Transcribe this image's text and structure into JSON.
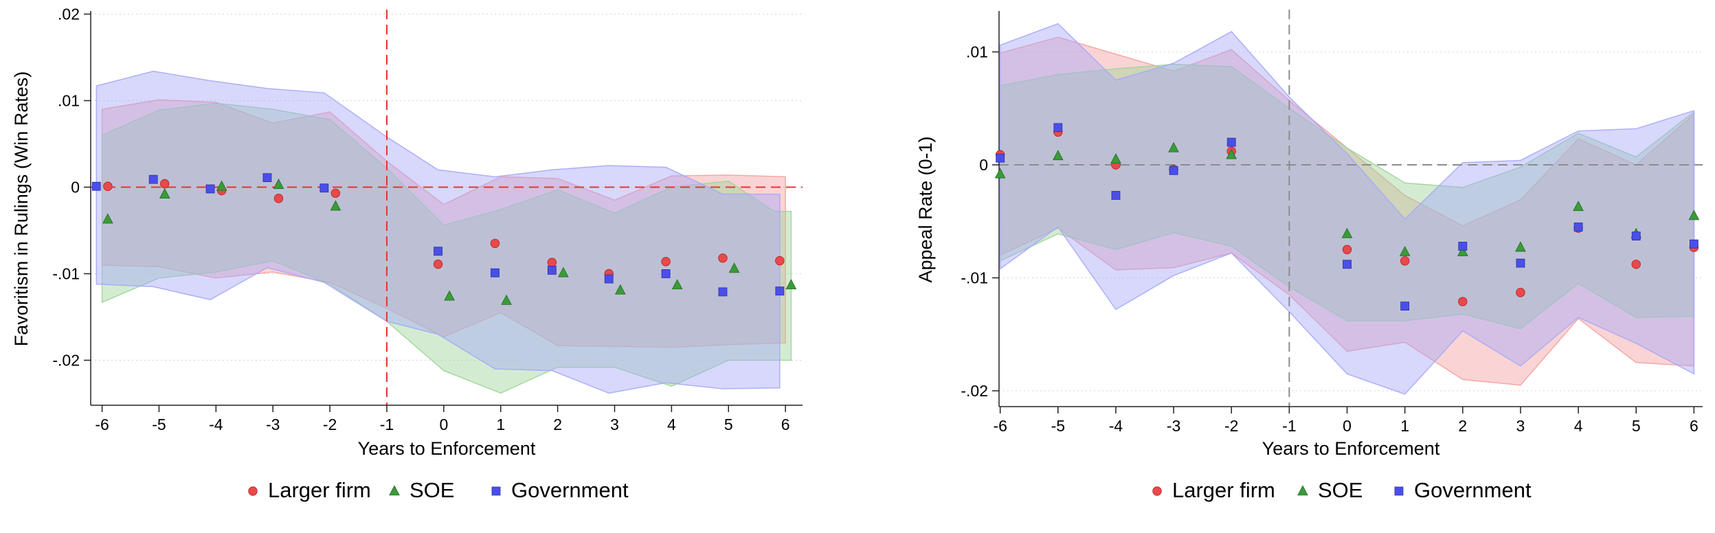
{
  "chart_data": [
    {
      "type": "scatter",
      "title": "",
      "xlabel": "Years to Enforcement",
      "ylabel": "Favoritism in Rulings (Win Rates)",
      "xlim": [
        -6.2,
        6.3
      ],
      "ylim": [
        -0.0252,
        0.0202
      ],
      "xticks": [
        -6,
        -5,
        -4,
        -3,
        -2,
        -1,
        0,
        1,
        2,
        3,
        4,
        5,
        6
      ],
      "xtick_labels": [
        "-6",
        "-5",
        "-4",
        "-3",
        "-2",
        "-1",
        "0",
        "1",
        "2",
        "3",
        "4",
        "5",
        "6"
      ],
      "yticks": [
        0.02,
        0.01,
        0,
        -0.01,
        -0.02
      ],
      "ytick_labels": [
        ".02",
        ".01",
        "0",
        "-.01",
        "-.02"
      ],
      "grid": "horizontal dotted",
      "reference_lines": {
        "vertical_x": -1,
        "horizontal_y": 0,
        "color": "#e8332f",
        "style": "dashed"
      },
      "legend": "bottom-center",
      "series": [
        {
          "name": "Larger firm",
          "marker": "circle",
          "color": "#e8494a",
          "band_color": "#f5a0a0",
          "x": [
            -5.9,
            -4.9,
            -3.9,
            -2.9,
            -1.9,
            -0.1,
            0.9,
            1.9,
            2.9,
            3.9,
            4.9,
            5.9
          ],
          "y": [
            0.0001,
            0.0004,
            -0.0004,
            -0.0013,
            -0.0007,
            -0.0089,
            -0.0065,
            -0.0087,
            -0.01,
            -0.0086,
            -0.0082,
            -0.0085
          ],
          "ci_x": [
            -6,
            -5,
            -4,
            -3,
            -2,
            -1,
            0,
            1,
            2,
            3,
            4,
            5,
            6
          ],
          "ci_lower": [
            -0.009,
            -0.0092,
            -0.0105,
            -0.0098,
            -0.011,
            -0.014,
            -0.0173,
            -0.0145,
            -0.0183,
            -0.0184,
            -0.0185,
            -0.0182,
            -0.018
          ],
          "ci_upper": [
            0.009,
            0.0101,
            0.0098,
            0.0074,
            0.0087,
            0.003,
            -0.002,
            0.0012,
            0.001,
            -0.0015,
            0.0013,
            0.0014,
            0.0012
          ]
        },
        {
          "name": "SOE",
          "marker": "triangle",
          "color": "#3a9b3a",
          "band_color": "#9ed49a",
          "x": [
            -5.9,
            -4.9,
            -3.9,
            -2.9,
            -1.9,
            0.1,
            1.1,
            2.1,
            3.1,
            4.1,
            5.1,
            6.1
          ],
          "y": [
            -0.0037,
            -0.0008,
            0.0001,
            0.0003,
            -0.0022,
            -0.0126,
            -0.0131,
            -0.0099,
            -0.0119,
            -0.0113,
            -0.0094,
            -0.0113
          ],
          "ci_x": [
            -6,
            -5,
            -4,
            -3,
            -2,
            -1,
            0,
            1,
            2,
            3,
            4,
            5,
            5.8,
            6.1
          ],
          "ci_lower": [
            -0.0133,
            -0.0105,
            -0.0098,
            -0.0085,
            -0.0112,
            -0.0155,
            -0.0212,
            -0.0238,
            -0.0208,
            -0.0208,
            -0.023,
            -0.02,
            -0.02,
            -0.02
          ],
          "ci_upper": [
            0.006,
            0.0089,
            0.0097,
            0.009,
            0.0078,
            0.0022,
            -0.0044,
            -0.0026,
            -0.0003,
            -0.003,
            0.0,
            0.0007,
            -0.0028,
            -0.0028
          ]
        },
        {
          "name": "Government",
          "marker": "square",
          "color": "#4a4fe8",
          "band_color": "#a6a8f8",
          "x": [
            -6.1,
            -5.1,
            -4.1,
            -3.1,
            -2.1,
            -0.1,
            0.9,
            1.9,
            2.9,
            3.9,
            4.9,
            5.9
          ],
          "y": [
            0.0001,
            0.0009,
            -0.0002,
            0.0011,
            -0.0001,
            -0.0074,
            -0.0099,
            -0.0096,
            -0.0106,
            -0.01,
            -0.0121,
            -0.012
          ],
          "ci_x": [
            -6.1,
            -5.1,
            -4.1,
            -3.1,
            -2.1,
            -1,
            -0.1,
            0.9,
            1.9,
            2.9,
            3.9,
            4.9,
            5.9
          ],
          "ci_lower": [
            -0.0112,
            -0.0115,
            -0.013,
            -0.0093,
            -0.011,
            -0.0155,
            -0.017,
            -0.021,
            -0.0212,
            -0.0238,
            -0.0226,
            -0.0233,
            -0.0232
          ],
          "ci_upper": [
            0.0117,
            0.0134,
            0.0123,
            0.0114,
            0.0109,
            0.0058,
            0.002,
            0.0012,
            0.002,
            0.0025,
            0.0023,
            -0.0008,
            -0.0008
          ]
        }
      ]
    },
    {
      "type": "scatter",
      "title": "",
      "xlabel": "Years to Enforcement",
      "ylabel": "Appeal Rate (0-1)",
      "xlim": [
        -6.02,
        6.15
      ],
      "ylim": [
        -0.0214,
        0.0135
      ],
      "xticks": [
        -6,
        -5,
        -4,
        -3,
        -2,
        -1,
        0,
        1,
        2,
        3,
        4,
        5,
        6
      ],
      "xtick_labels": [
        "-6",
        "-5",
        "-4",
        "-3",
        "-2",
        "-1",
        "0",
        "1",
        "2",
        "3",
        "4",
        "5",
        "6"
      ],
      "yticks": [
        0.01,
        0,
        -0.01,
        -0.02
      ],
      "ytick_labels": [
        ".01",
        "0",
        "-.01",
        "-.02"
      ],
      "grid": "horizontal dotted",
      "reference_lines": {
        "vertical_x": -1,
        "horizontal_y": 0,
        "color": "#8c8c8c",
        "style": "dashed"
      },
      "legend": "bottom-center",
      "series": [
        {
          "name": "Larger firm",
          "marker": "circle",
          "color": "#e8494a",
          "band_color": "#f5a0a0",
          "x": [
            -6,
            -5,
            -4,
            -3,
            -2,
            0,
            1,
            2,
            3,
            4,
            5,
            6
          ],
          "y": [
            0.0009,
            0.0029,
            0.0,
            -0.0004,
            0.0012,
            -0.0075,
            -0.0085,
            -0.0121,
            -0.0113,
            -0.0056,
            -0.0088,
            -0.0073
          ],
          "ci_x": [
            -6,
            -5,
            -4,
            -3,
            -2,
            -1,
            0,
            1,
            2,
            3,
            4,
            5,
            6
          ],
          "ci_lower": [
            -0.008,
            -0.0056,
            -0.0093,
            -0.0091,
            -0.0078,
            -0.0115,
            -0.0165,
            -0.0157,
            -0.019,
            -0.0195,
            -0.0136,
            -0.0175,
            -0.0178
          ],
          "ci_upper": [
            0.0099,
            0.0113,
            0.0098,
            0.0083,
            0.0102,
            0.0057,
            0.0015,
            -0.0027,
            -0.0054,
            -0.0031,
            0.0023,
            0.0,
            0.0045
          ]
        },
        {
          "name": "SOE",
          "marker": "triangle",
          "color": "#3a9b3a",
          "band_color": "#9ed49a",
          "x": [
            -6,
            -5,
            -4,
            -3,
            -2,
            0,
            1,
            2,
            3,
            4,
            5,
            6
          ],
          "y": [
            -0.0008,
            0.0008,
            0.0005,
            0.0015,
            0.0009,
            -0.0061,
            -0.0077,
            -0.0077,
            -0.0073,
            -0.0037,
            -0.0061,
            -0.0045
          ],
          "ci_x": [
            -6,
            -5,
            -4,
            -3,
            -2,
            -1,
            0,
            1,
            2,
            3,
            4,
            5,
            6
          ],
          "ci_lower": [
            -0.0085,
            -0.0061,
            -0.0075,
            -0.006,
            -0.0072,
            -0.0108,
            -0.0138,
            -0.0138,
            -0.0132,
            -0.0145,
            -0.0105,
            -0.0135,
            -0.0134
          ],
          "ci_upper": [
            0.007,
            0.008,
            0.0085,
            0.0089,
            0.0087,
            0.005,
            0.0015,
            -0.0016,
            -0.002,
            -0.0002,
            0.0028,
            0.0007,
            0.0047
          ]
        },
        {
          "name": "Government",
          "marker": "square",
          "color": "#4a4fe8",
          "band_color": "#a6a8f8",
          "x": [
            -6,
            -5,
            -4,
            -3,
            -2,
            0,
            1,
            2,
            3,
            4,
            5,
            6
          ],
          "y": [
            0.0006,
            0.0033,
            -0.0027,
            -0.0005,
            0.002,
            -0.0088,
            -0.0125,
            -0.0072,
            -0.0087,
            -0.0055,
            -0.0063,
            -0.007
          ],
          "ci_x": [
            -6,
            -5,
            -4,
            -3,
            -2,
            -1,
            0,
            1,
            2,
            3,
            4,
            5,
            6
          ],
          "ci_lower": [
            -0.0092,
            -0.0055,
            -0.0128,
            -0.0098,
            -0.0078,
            -0.013,
            -0.0185,
            -0.0203,
            -0.0147,
            -0.0178,
            -0.0135,
            -0.0158,
            -0.0185
          ],
          "ci_upper": [
            0.0106,
            0.0125,
            0.0075,
            0.009,
            0.0118,
            0.006,
            0.001,
            -0.0048,
            0.0002,
            0.0004,
            0.003,
            0.0032,
            0.0048
          ]
        }
      ]
    }
  ]
}
